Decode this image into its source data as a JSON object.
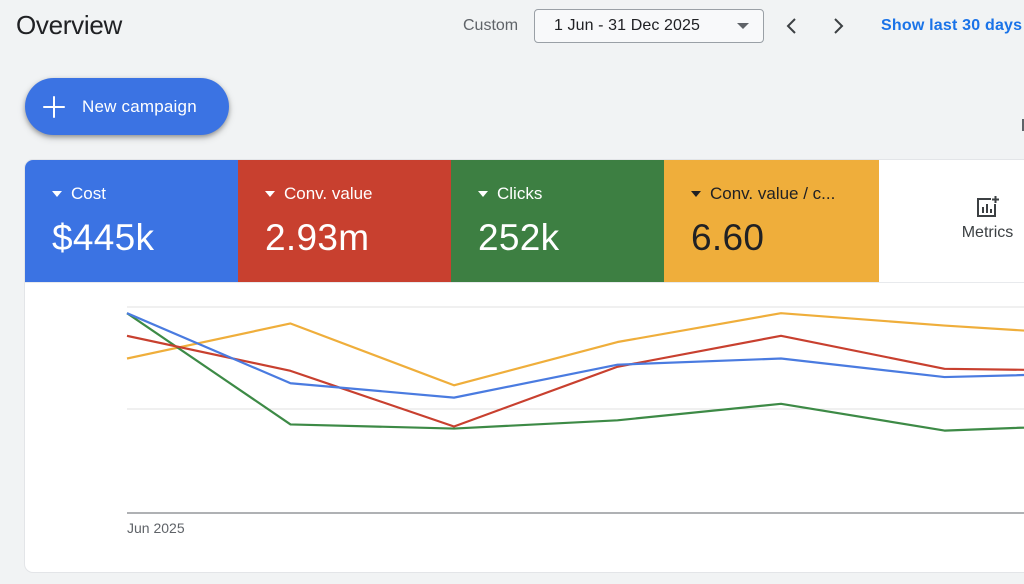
{
  "header": {
    "title": "Overview",
    "range_label": "Custom",
    "date_range": "1 Jun - 31 Dec 2025",
    "show_last": "Show last 30 days"
  },
  "actions": {
    "new_campaign": "New campaign"
  },
  "metrics": [
    {
      "label": "Cost",
      "value": "$445k",
      "color": "#3b73e3"
    },
    {
      "label": "Conv. value",
      "value": "2.93m",
      "color": "#c8402f"
    },
    {
      "label": "Clicks",
      "value": "252k",
      "color": "#3d7f42"
    },
    {
      "label": "Conv. value / c...",
      "value": "6.60",
      "color": "#efae3b"
    }
  ],
  "metrics_button": {
    "label": "Metrics"
  },
  "chart_data": {
    "type": "line",
    "x": [
      0,
      1,
      2,
      3,
      4,
      5,
      6
    ],
    "x_tick_labels": [
      "Jun 2025"
    ],
    "grid": true,
    "y_range": [
      0,
      100
    ],
    "series": [
      {
        "name": "Cost",
        "color": "#4a7be0",
        "values": [
          97,
          63,
          56,
          72,
          75,
          66,
          68
        ]
      },
      {
        "name": "Conv. value",
        "color": "#c8402f",
        "values": [
          86,
          69,
          42,
          71,
          86,
          70,
          69
        ]
      },
      {
        "name": "Clicks",
        "color": "#3d8a46",
        "values": [
          97,
          43,
          41,
          45,
          53,
          40,
          43
        ]
      },
      {
        "name": "Conv. value / c...",
        "color": "#efae3b",
        "values": [
          75,
          92,
          62,
          83,
          97,
          91,
          86
        ]
      }
    ]
  }
}
